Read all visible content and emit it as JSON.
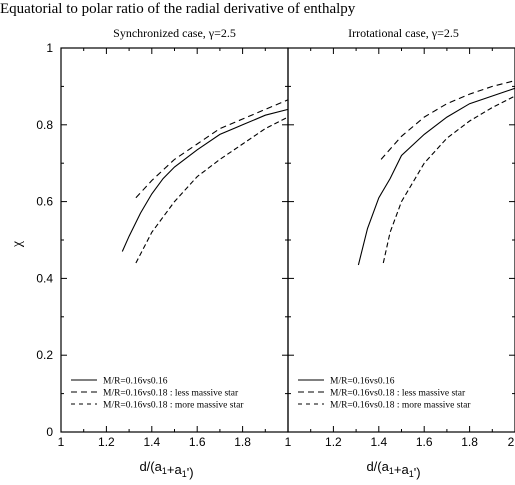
{
  "page_title": "Equatorial to polar ratio of the radial derivative of enthalpy",
  "chart_data": [
    {
      "type": "line",
      "title": "Synchronized case, γ=2.5",
      "xlabel": "d/(a₁+a₁')",
      "ylabel": "χ",
      "xlim": [
        1,
        2
      ],
      "ylim": [
        0,
        1
      ],
      "xticks": [
        "1",
        "1.2",
        "1.4",
        "1.6",
        "1.8",
        ""
      ],
      "yticks": [
        "0",
        "0.2",
        "0.4",
        "0.6",
        "0.8",
        "1"
      ],
      "grid": false,
      "legend_position": "bottom-left",
      "series": [
        {
          "name": "M/R=0.16vs0.16",
          "style": "solid",
          "x": [
            1.27,
            1.3,
            1.35,
            1.4,
            1.45,
            1.5,
            1.6,
            1.7,
            1.8,
            1.9,
            2.0
          ],
          "y": [
            0.47,
            0.51,
            0.57,
            0.62,
            0.66,
            0.69,
            0.735,
            0.775,
            0.8,
            0.825,
            0.84
          ]
        },
        {
          "name": "M/R=0.16vs0.18 : less massive star",
          "style": "dash",
          "x": [
            1.33,
            1.4,
            1.5,
            1.6,
            1.7,
            1.8,
            1.9,
            2.0
          ],
          "y": [
            0.61,
            0.655,
            0.71,
            0.75,
            0.79,
            0.815,
            0.84,
            0.865
          ]
        },
        {
          "name": "M/R=0.16vs0.18 : more massive star",
          "style": "dash2",
          "x": [
            1.33,
            1.4,
            1.5,
            1.6,
            1.7,
            1.8,
            1.9,
            2.0
          ],
          "y": [
            0.44,
            0.52,
            0.6,
            0.665,
            0.71,
            0.75,
            0.79,
            0.82
          ]
        }
      ]
    },
    {
      "type": "line",
      "title": "Irrotational case, γ=2.5",
      "xlabel": "d/(a₁+a₁')",
      "ylabel": "",
      "xlim": [
        1,
        2
      ],
      "ylim": [
        0,
        1
      ],
      "xticks": [
        "1",
        "1.2",
        "1.4",
        "1.6",
        "1.8",
        "2"
      ],
      "grid": false,
      "legend_position": "bottom-left",
      "series": [
        {
          "name": "M/R=0.16vs0.16",
          "style": "solid",
          "x": [
            1.31,
            1.35,
            1.4,
            1.45,
            1.5,
            1.6,
            1.7,
            1.8,
            1.9,
            2.0
          ],
          "y": [
            0.435,
            0.53,
            0.61,
            0.66,
            0.72,
            0.775,
            0.82,
            0.855,
            0.875,
            0.895
          ]
        },
        {
          "name": "M/R=0.16vs0.18 : less massive star",
          "style": "dash",
          "x": [
            1.41,
            1.5,
            1.6,
            1.7,
            1.8,
            1.9,
            2.0
          ],
          "y": [
            0.71,
            0.77,
            0.82,
            0.855,
            0.88,
            0.9,
            0.915
          ]
        },
        {
          "name": "M/R=0.16vs0.18 : more massive star",
          "style": "dash2",
          "x": [
            1.42,
            1.45,
            1.5,
            1.55,
            1.6,
            1.7,
            1.8,
            1.9,
            2.0
          ],
          "y": [
            0.44,
            0.52,
            0.6,
            0.65,
            0.7,
            0.765,
            0.81,
            0.845,
            0.875
          ]
        }
      ]
    }
  ]
}
